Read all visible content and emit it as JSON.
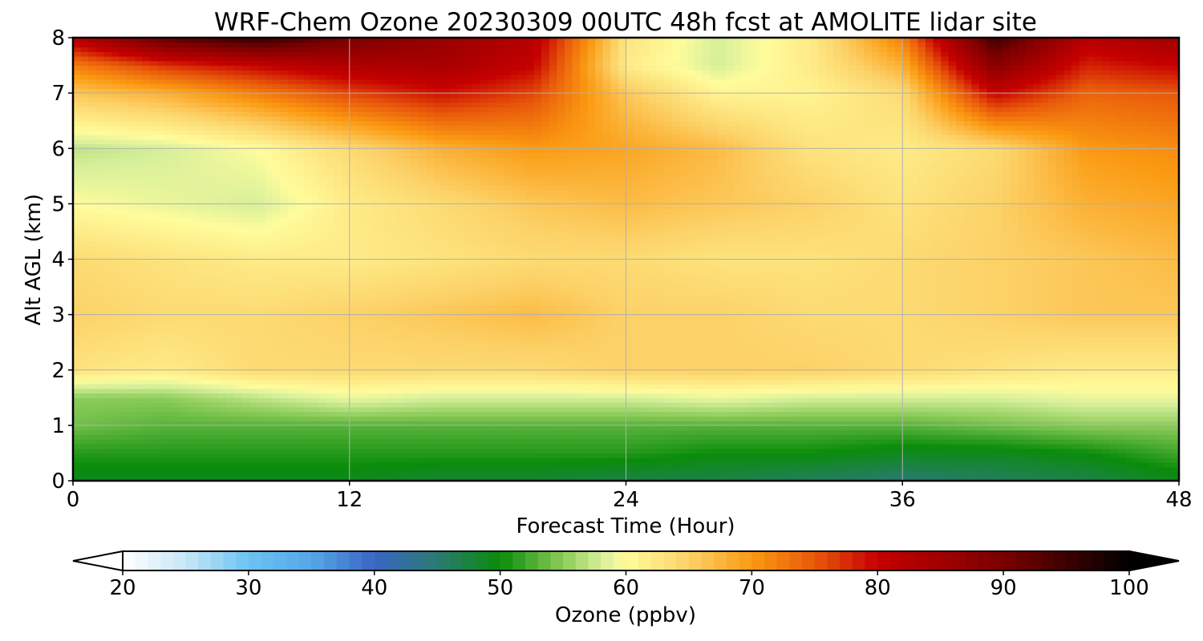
{
  "chart_data": {
    "type": "heatmap",
    "title": "WRF-Chem Ozone  20230309 00UTC 48h fcst at AMOLITE lidar site",
    "xlabel": "Forecast Time (Hour)",
    "ylabel": "Alt AGL (km)",
    "xlim": [
      0,
      48
    ],
    "ylim": [
      0,
      8
    ],
    "x_ticks": [
      0,
      12,
      24,
      36,
      48
    ],
    "y_ticks": [
      0,
      1,
      2,
      3,
      4,
      5,
      6,
      7,
      8
    ],
    "grid": true,
    "colorbar": {
      "label": "Ozone  (ppbv)",
      "range": [
        20,
        100
      ],
      "ticks": [
        20,
        30,
        40,
        50,
        60,
        70,
        80,
        90,
        100
      ],
      "extend": "both",
      "color_stops": [
        {
          "value": 20,
          "color": "#ffffff"
        },
        {
          "value": 25,
          "color": "#c6e7f7"
        },
        {
          "value": 30,
          "color": "#6cc3f2"
        },
        {
          "value": 35,
          "color": "#56a6e8"
        },
        {
          "value": 40,
          "color": "#3a66c4"
        },
        {
          "value": 45,
          "color": "#2a7a72"
        },
        {
          "value": 50,
          "color": "#0a8c0a"
        },
        {
          "value": 55,
          "color": "#8ccc5a"
        },
        {
          "value": 58,
          "color": "#d6ef9a"
        },
        {
          "value": 60,
          "color": "#fffc9c"
        },
        {
          "value": 65,
          "color": "#fcd268"
        },
        {
          "value": 70,
          "color": "#fb9a12"
        },
        {
          "value": 75,
          "color": "#e8580a"
        },
        {
          "value": 80,
          "color": "#c60000"
        },
        {
          "value": 90,
          "color": "#7a0000"
        },
        {
          "value": 100,
          "color": "#000000"
        }
      ]
    },
    "x": [
      0,
      4,
      8,
      12,
      16,
      20,
      24,
      28,
      32,
      36,
      40,
      44,
      48
    ],
    "y": [
      0,
      0.5,
      1,
      1.5,
      2,
      3,
      4,
      5,
      6,
      7,
      7.5,
      8
    ],
    "z": [
      [
        49,
        49,
        49,
        49,
        48,
        48,
        47,
        47,
        46,
        45,
        46,
        47,
        49
      ],
      [
        51,
        51,
        51,
        51,
        51,
        51,
        51,
        50,
        50,
        49,
        49,
        50,
        52
      ],
      [
        54,
        53,
        53,
        53,
        53,
        53,
        53,
        53,
        53,
        53,
        54,
        55,
        55
      ],
      [
        55,
        55,
        57,
        59,
        58,
        58,
        58,
        59,
        58,
        58,
        58,
        59,
        59
      ],
      [
        63,
        62,
        64,
        64,
        64,
        64,
        65,
        65,
        65,
        64,
        63,
        62,
        62
      ],
      [
        65,
        64,
        64,
        65,
        66,
        67,
        65,
        65,
        64,
        64,
        65,
        66,
        66
      ],
      [
        64,
        63,
        62,
        62,
        63,
        64,
        64,
        63,
        63,
        64,
        65,
        66,
        67
      ],
      [
        60,
        59,
        58,
        62,
        64,
        66,
        67,
        66,
        65,
        63,
        65,
        68,
        69
      ],
      [
        57,
        58,
        60,
        64,
        68,
        70,
        69,
        67,
        63,
        62,
        64,
        70,
        71
      ],
      [
        66,
        68,
        72,
        76,
        79,
        76,
        66,
        61,
        61,
        64,
        80,
        74,
        75
      ],
      [
        72,
        77,
        80,
        83,
        84,
        80,
        62,
        58,
        62,
        68,
        88,
        78,
        80
      ],
      [
        82,
        92,
        96,
        90,
        86,
        82,
        63,
        58,
        62,
        72,
        95,
        82,
        85
      ]
    ]
  }
}
